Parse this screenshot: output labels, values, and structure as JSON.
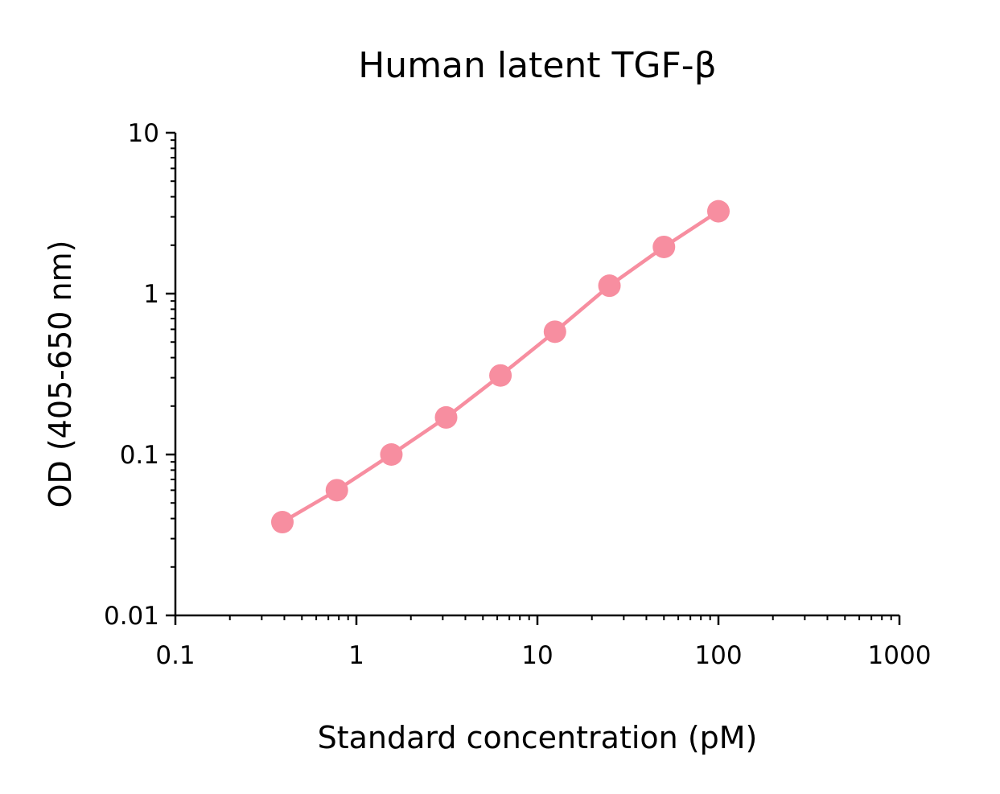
{
  "chart_data": {
    "type": "line",
    "title": "Human latent TGF-β",
    "xlabel": "Standard concentration (pM)",
    "ylabel": "OD (405-650 nm)",
    "x_scale": "log",
    "y_scale": "log",
    "xlim": [
      0.1,
      1000
    ],
    "ylim": [
      0.01,
      10
    ],
    "x_ticks": [
      {
        "value": 0.1,
        "label": "0.1"
      },
      {
        "value": 1,
        "label": "1"
      },
      {
        "value": 10,
        "label": "10"
      },
      {
        "value": 100,
        "label": "100"
      },
      {
        "value": 1000,
        "label": "1000"
      }
    ],
    "y_ticks": [
      {
        "value": 0.01,
        "label": "0.01"
      },
      {
        "value": 0.1,
        "label": "0.1"
      },
      {
        "value": 1,
        "label": "1"
      },
      {
        "value": 10,
        "label": "10"
      }
    ],
    "grid": false,
    "series": [
      {
        "color": "#f78ea0",
        "x": [
          0.39,
          0.78,
          1.56,
          3.13,
          6.25,
          12.5,
          25,
          50,
          100
        ],
        "y": [
          0.038,
          0.06,
          0.1,
          0.17,
          0.31,
          0.58,
          1.12,
          1.95,
          3.25
        ]
      }
    ]
  }
}
